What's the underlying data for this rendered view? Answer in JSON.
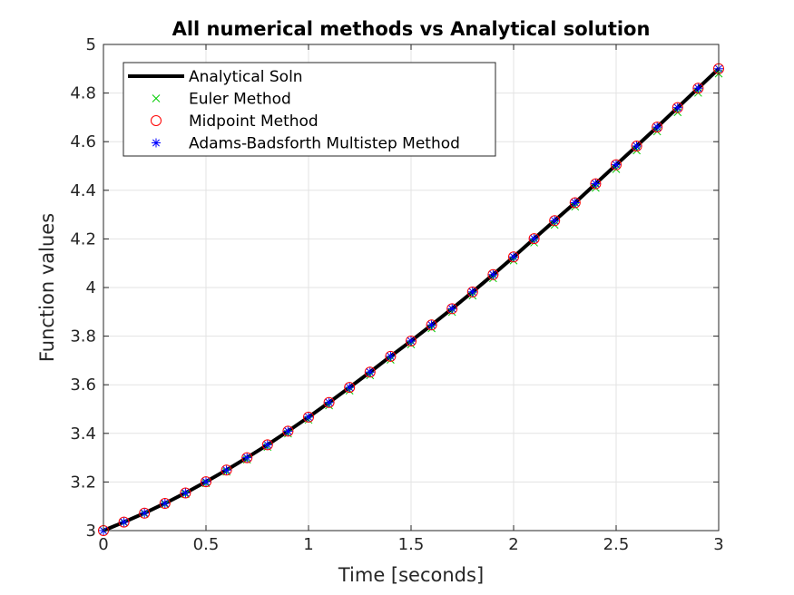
{
  "chart_data": {
    "type": "line",
    "title": "All numerical methods vs Analytical solution",
    "xlabel": "Time [seconds]",
    "ylabel": "Function values",
    "xlim": [
      0,
      3
    ],
    "ylim": [
      3,
      5
    ],
    "xticks": [
      0,
      0.5,
      1,
      1.5,
      2,
      2.5,
      3
    ],
    "xtick_labels": [
      "0",
      "0.5",
      "1",
      "1.5",
      "2",
      "2.5",
      "3"
    ],
    "yticks": [
      3,
      3.2,
      3.4,
      3.6,
      3.8,
      4,
      4.2,
      4.4,
      4.6,
      4.8,
      5
    ],
    "ytick_labels": [
      "3",
      "3.2",
      "3.4",
      "3.6",
      "3.8",
      "4",
      "4.2",
      "4.4",
      "4.6",
      "4.8",
      "5"
    ],
    "grid": true,
    "legend_position": "top-left",
    "x": [
      0,
      0.1,
      0.2,
      0.3,
      0.4,
      0.5,
      0.6,
      0.7,
      0.8,
      0.9,
      1.0,
      1.1,
      1.2,
      1.3,
      1.4,
      1.5,
      1.6,
      1.7,
      1.8,
      1.9,
      2.0,
      2.1,
      2.2,
      2.3,
      2.4,
      2.5,
      2.6,
      2.7,
      2.8,
      2.9,
      3.0
    ],
    "series": [
      {
        "name": "Analytical Soln",
        "style": "line",
        "color": "#000000",
        "values": [
          3.0,
          3.035,
          3.072,
          3.112,
          3.155,
          3.201,
          3.249,
          3.3,
          3.353,
          3.409,
          3.467,
          3.527,
          3.589,
          3.652,
          3.717,
          3.78,
          3.846,
          3.913,
          3.982,
          4.053,
          4.126,
          4.201,
          4.275,
          4.349,
          4.427,
          4.505,
          4.582,
          4.66,
          4.74,
          4.82,
          4.9
        ]
      },
      {
        "name": "Euler Method",
        "style": "x-marker",
        "color": "#00cc00",
        "values": [
          3.0,
          3.033,
          3.069,
          3.108,
          3.15,
          3.195,
          3.242,
          3.292,
          3.344,
          3.399,
          3.456,
          3.515,
          3.576,
          3.639,
          3.703,
          3.766,
          3.832,
          3.899,
          3.967,
          4.038,
          4.111,
          4.185,
          4.258,
          4.333,
          4.41,
          4.487,
          4.564,
          4.642,
          4.721,
          4.801,
          4.88
        ]
      },
      {
        "name": "Midpoint Method",
        "style": "circle-marker",
        "color": "#ff0000",
        "values": [
          3.0,
          3.035,
          3.072,
          3.112,
          3.155,
          3.201,
          3.249,
          3.3,
          3.353,
          3.409,
          3.467,
          3.527,
          3.589,
          3.652,
          3.717,
          3.78,
          3.846,
          3.913,
          3.982,
          4.053,
          4.126,
          4.201,
          4.275,
          4.349,
          4.427,
          4.505,
          4.582,
          4.66,
          4.74,
          4.82,
          4.9
        ]
      },
      {
        "name": "Adams-Badsforth Multistep Method",
        "style": "star-marker",
        "color": "#0000ff",
        "values": [
          3.0,
          3.035,
          3.072,
          3.112,
          3.155,
          3.201,
          3.249,
          3.3,
          3.353,
          3.409,
          3.467,
          3.527,
          3.589,
          3.652,
          3.717,
          3.78,
          3.846,
          3.913,
          3.982,
          4.053,
          4.126,
          4.201,
          4.275,
          4.349,
          4.427,
          4.505,
          4.582,
          4.66,
          4.74,
          4.82,
          4.9
        ]
      }
    ]
  }
}
